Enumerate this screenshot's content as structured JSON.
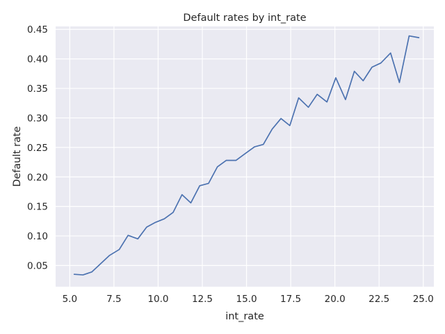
{
  "chart_data": {
    "type": "line",
    "title": "Default rates by int_rate",
    "xlabel": "int_rate",
    "ylabel": "Default rate",
    "xlim": [
      4.2,
      25.6
    ],
    "ylim": [
      0.014,
      0.455
    ],
    "xticks": [
      5.0,
      7.5,
      10.0,
      12.5,
      15.0,
      17.5,
      20.0,
      22.5,
      25.0
    ],
    "xtick_labels": [
      "5.0",
      "7.5",
      "10.0",
      "12.5",
      "15.0",
      "17.5",
      "20.0",
      "22.5",
      "25.0"
    ],
    "yticks": [
      0.05,
      0.1,
      0.15,
      0.2,
      0.25,
      0.3,
      0.35,
      0.4,
      0.45
    ],
    "ytick_labels": [
      "0.05",
      "0.10",
      "0.15",
      "0.20",
      "0.25",
      "0.30",
      "0.35",
      "0.40",
      "0.45"
    ],
    "grid": true,
    "series": [
      {
        "color": "#4c72b0",
        "x": [
          5.25,
          5.75,
          6.25,
          6.75,
          7.25,
          7.8,
          8.3,
          8.85,
          9.35,
          9.85,
          10.35,
          10.85,
          11.35,
          11.85,
          12.35,
          12.85,
          13.35,
          13.85,
          14.4,
          14.9,
          15.45,
          15.95,
          16.45,
          16.95,
          17.45,
          17.95,
          18.5,
          19.0,
          19.55,
          20.05,
          20.6,
          21.1,
          21.6,
          22.1,
          22.6,
          23.15,
          23.65,
          24.2,
          24.75
        ],
        "y": [
          0.035,
          0.034,
          0.039,
          0.053,
          0.067,
          0.077,
          0.101,
          0.095,
          0.115,
          0.123,
          0.129,
          0.14,
          0.17,
          0.156,
          0.185,
          0.189,
          0.217,
          0.228,
          0.228,
          0.239,
          0.251,
          0.255,
          0.281,
          0.299,
          0.287,
          0.334,
          0.318,
          0.34,
          0.327,
          0.368,
          0.331,
          0.379,
          0.363,
          0.386,
          0.393,
          0.41,
          0.36,
          0.439,
          0.436
        ]
      }
    ]
  }
}
